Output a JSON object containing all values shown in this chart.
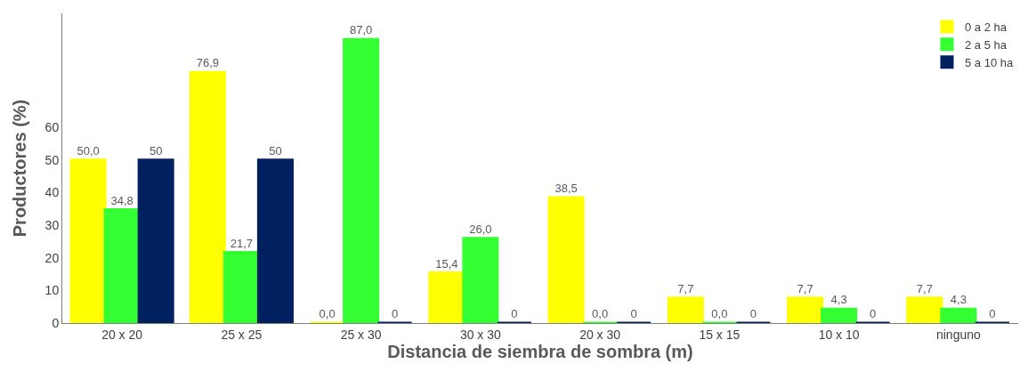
{
  "chart_data": {
    "type": "bar",
    "xlabel": "Distancia de siembra de sombra (m)",
    "ylabel": "Productores (%)",
    "categories": [
      "20 x 20",
      "25 x 25",
      "25 x 30",
      "30 x 30",
      "20 x 30",
      "15 x 15",
      "10 x 10",
      "ninguno"
    ],
    "series": [
      {
        "name": "0 a 2 ha",
        "color": "#ffff00",
        "values": [
          50.0,
          76.9,
          0.0,
          15.4,
          38.5,
          7.7,
          7.7,
          7.7
        ],
        "value_labels": [
          "50,0",
          "76,9",
          "0,0",
          "15,4",
          "38,5",
          "7,7",
          "7,7",
          "7,7"
        ]
      },
      {
        "name": "2 a 5 ha",
        "color": "#33ff33",
        "values": [
          34.8,
          21.7,
          87.0,
          26.0,
          0.0,
          0.0,
          4.3,
          4.3
        ],
        "value_labels": [
          "34,8",
          "21,7",
          "87,0",
          "26,0",
          "0,0",
          "0,0",
          "4,3",
          "4,3"
        ]
      },
      {
        "name": "5 a 10 ha",
        "color": "#002060",
        "values": [
          50,
          50,
          0,
          0,
          0,
          0,
          0,
          0
        ],
        "value_labels": [
          "50",
          "50",
          "0",
          "0",
          "0",
          "0",
          "0",
          "0"
        ]
      }
    ],
    "ylim": [
      0,
      95
    ],
    "yticks": [
      0,
      10,
      20,
      30,
      40,
      50,
      60
    ],
    "legend": "top right"
  }
}
